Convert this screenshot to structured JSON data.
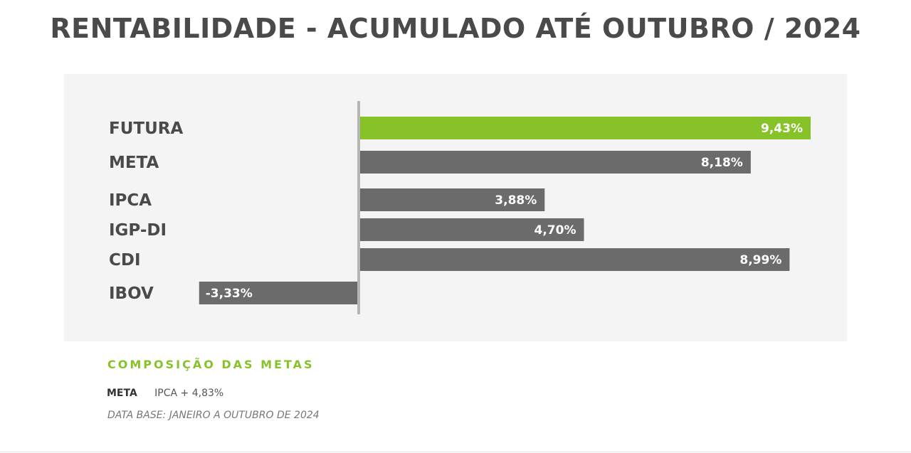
{
  "chart_data": {
    "type": "bar",
    "orientation": "horizontal",
    "title": "RENTABILIDADE - ACUMULADO ATÉ OUTUBRO / 2024",
    "categories": [
      "FUTURA",
      "META",
      "IPCA",
      "IGP-DI",
      "CDI",
      "IBOV"
    ],
    "values": [
      9.43,
      8.18,
      3.88,
      4.7,
      8.99,
      -3.33
    ],
    "value_labels": [
      "9,43%",
      "8,18%",
      "3,88%",
      "4,70%",
      "8,99%",
      "-3,33%"
    ],
    "highlight_category": "FUTURA",
    "colors": {
      "highlight": "#86c228",
      "default": "#6b6b6b",
      "axis": "#b5b5b5",
      "panel": "#f4f4f4"
    },
    "xlim": [
      -3.33,
      9.43
    ],
    "grid": false
  },
  "composition": {
    "title": "COMPOSIÇÃO DAS METAS",
    "rows": [
      {
        "key": "META",
        "value": "IPCA + 4,83%"
      }
    ],
    "footnote": "DATA BASE: JANEIRO A OUTUBRO DE 2024"
  }
}
